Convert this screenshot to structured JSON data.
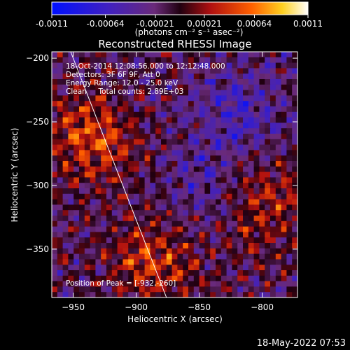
{
  "colorbar": {
    "ticks": [
      "-0.0011",
      "-0.00064",
      "-0.00021",
      "0.00021",
      "0.00064",
      "0.0011"
    ],
    "tick_values": [
      -0.0011,
      -0.00064,
      -0.00021,
      0.00021,
      0.00064,
      0.0011
    ],
    "range": [
      -0.0011,
      0.0011
    ],
    "units": "(photons cm⁻² s⁻¹ asec⁻²)"
  },
  "chart_data": {
    "type": "heatmap",
    "title": "Reconstructed RHESSI Image",
    "xlabel": "Heliocentric X (arcsec)",
    "ylabel": "Heliocentric Y (arcsec)",
    "xlim": [
      -967,
      -772
    ],
    "ylim": [
      -388,
      -195
    ],
    "x_ticks": [
      -950,
      -900,
      -850,
      -800
    ],
    "y_ticks": [
      -200,
      -250,
      -300,
      -350
    ],
    "colormap": "blue-purple-red-yellow-white",
    "limb_line": [
      [
        -952,
        -195
      ],
      [
        -876,
        -388
      ]
    ],
    "peak": [
      -932,
      -260
    ],
    "annotations": [
      "18-Oct-2014 12:08:56.000 to 12:12:48.000",
      "Detectors: 3F 6F 9F, Att 0",
      "Energy Range: 12.0 - 25.0 keV",
      "Clean     Total counts: 2.89E+03",
      "Position of Peak = [-932,-260]"
    ]
  },
  "footer": {
    "timestamp": "18-May-2022 07:53"
  }
}
